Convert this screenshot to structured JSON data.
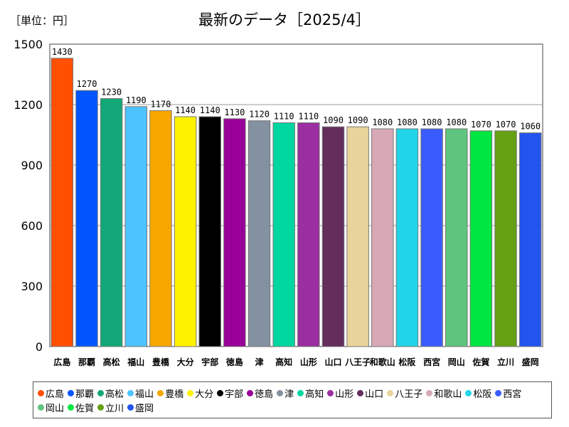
{
  "unit_label": "［単位：円］",
  "chart_data": {
    "type": "bar",
    "title": "最新のデータ［2025/4］",
    "xlabel": "",
    "ylabel": "",
    "ylim": [
      0,
      1500
    ],
    "yticks": [
      0,
      300,
      600,
      900,
      1200,
      1500
    ],
    "grid": true,
    "legend_position": "bottom",
    "categories": [
      "広島",
      "那覇",
      "高松",
      "福山",
      "豊橋",
      "大分",
      "宇部",
      "徳島",
      "津",
      "高知",
      "山形",
      "山口",
      "八王子",
      "和歌山",
      "松阪",
      "西宮",
      "岡山",
      "佐賀",
      "立川",
      "盛岡"
    ],
    "values": [
      1430,
      1270,
      1230,
      1190,
      1170,
      1140,
      1140,
      1130,
      1120,
      1110,
      1110,
      1090,
      1090,
      1080,
      1080,
      1080,
      1080,
      1070,
      1070,
      1060
    ],
    "colors": [
      "#ff4f00",
      "#0055ff",
      "#12a878",
      "#4dc3ff",
      "#f7a700",
      "#fff200",
      "#000000",
      "#990099",
      "#8391a0",
      "#00d7a0",
      "#9b2ea0",
      "#642d5c",
      "#e8d49a",
      "#d7a9b4",
      "#22d4e8",
      "#3a5cff",
      "#5fc47e",
      "#00e640",
      "#66a013",
      "#2255ee"
    ]
  }
}
